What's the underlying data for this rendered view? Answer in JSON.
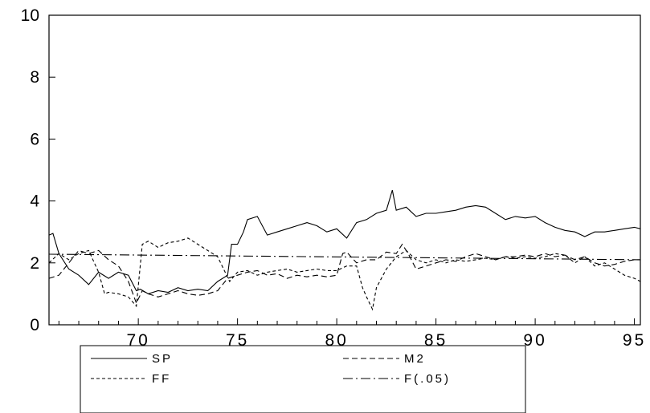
{
  "chart_data": {
    "type": "line",
    "title": "",
    "xlabel": "",
    "ylabel": "",
    "xlim": [
      1965.5,
      1995.3
    ],
    "ylim": [
      0,
      10
    ],
    "x_ticks": [
      "70",
      "75",
      "80",
      "85",
      "90",
      "95"
    ],
    "x_tick_values": [
      1970,
      1975,
      1980,
      1985,
      1990,
      1995
    ],
    "y_ticks": [
      "0",
      "2",
      "4",
      "6",
      "8",
      "10"
    ],
    "y_tick_values": [
      0,
      2,
      4,
      6,
      8,
      10
    ],
    "grid": false,
    "legend": "bottom",
    "series": [
      {
        "name": "SP",
        "dash": "solid",
        "x": [
          1965.5,
          1965.7,
          1966.0,
          1966.5,
          1967.0,
          1967.5,
          1968.0,
          1968.5,
          1969.0,
          1969.5,
          1969.9,
          1970.1,
          1970.5,
          1971.0,
          1971.5,
          1972.0,
          1972.5,
          1973.0,
          1973.5,
          1974.0,
          1974.5,
          1974.7,
          1975.0,
          1975.3,
          1975.5,
          1976.0,
          1976.5,
          1977.0,
          1977.5,
          1978.0,
          1978.5,
          1979.0,
          1979.5,
          1980.0,
          1980.5,
          1981.0,
          1981.5,
          1982.0,
          1982.5,
          1982.8,
          1983.0,
          1983.5,
          1984.0,
          1984.5,
          1985.0,
          1985.5,
          1986.0,
          1986.5,
          1987.0,
          1987.5,
          1988.0,
          1988.5,
          1989.0,
          1989.5,
          1990.0,
          1990.5,
          1991.0,
          1991.5,
          1992.0,
          1992.5,
          1993.0,
          1993.5,
          1994.0,
          1994.5,
          1995.0,
          1995.3
        ],
        "values": [
          2.9,
          2.95,
          2.3,
          1.8,
          1.6,
          1.3,
          1.7,
          1.5,
          1.7,
          1.6,
          1.1,
          1.15,
          1.0,
          1.1,
          1.05,
          1.2,
          1.1,
          1.15,
          1.1,
          1.4,
          1.6,
          2.6,
          2.6,
          3.0,
          3.4,
          3.5,
          2.9,
          3.0,
          3.1,
          3.2,
          3.3,
          3.2,
          3.0,
          3.1,
          2.8,
          3.3,
          3.4,
          3.6,
          3.7,
          4.35,
          3.7,
          3.8,
          3.5,
          3.6,
          3.6,
          3.65,
          3.7,
          3.8,
          3.85,
          3.8,
          3.6,
          3.4,
          3.5,
          3.45,
          3.5,
          3.3,
          3.15,
          3.05,
          3.0,
          2.85,
          3.0,
          3.0,
          3.05,
          3.1,
          3.15,
          3.1
        ]
      },
      {
        "name": "M2",
        "dash": "long-dash",
        "x": [
          1965.5,
          1966.0,
          1966.5,
          1967.0,
          1967.5,
          1968.0,
          1968.5,
          1969.0,
          1969.5,
          1969.9,
          1970.2,
          1970.5,
          1971.0,
          1971.5,
          1972.0,
          1972.5,
          1973.0,
          1973.5,
          1974.0,
          1974.5,
          1975.0,
          1975.5,
          1976.0,
          1976.5,
          1977.0,
          1977.5,
          1978.0,
          1978.5,
          1979.0,
          1979.5,
          1980.0,
          1980.3,
          1980.5,
          1981.0,
          1981.5,
          1982.0,
          1982.5,
          1983.0,
          1983.3,
          1983.6,
          1984.0,
          1984.5,
          1985.0,
          1985.5,
          1986.0,
          1986.5,
          1987.0,
          1987.5,
          1988.0,
          1988.5,
          1989.0,
          1989.5,
          1990.0,
          1990.5,
          1991.0,
          1991.5,
          1992.0,
          1992.5,
          1993.0,
          1993.5,
          1994.0,
          1994.5,
          1995.0,
          1995.3
        ],
        "values": [
          1.5,
          1.6,
          2.0,
          2.4,
          2.3,
          2.4,
          2.1,
          1.9,
          1.4,
          0.7,
          1.1,
          1.0,
          0.9,
          1.0,
          1.1,
          1.0,
          0.95,
          1.0,
          1.1,
          1.5,
          1.6,
          1.7,
          1.75,
          1.6,
          1.65,
          1.5,
          1.6,
          1.55,
          1.6,
          1.55,
          1.6,
          2.3,
          2.35,
          2.0,
          2.1,
          2.1,
          2.35,
          2.3,
          2.6,
          2.3,
          1.8,
          1.9,
          2.0,
          2.1,
          2.05,
          2.2,
          2.3,
          2.2,
          2.1,
          2.2,
          2.2,
          2.25,
          2.2,
          2.3,
          2.2,
          2.25,
          2.1,
          2.2,
          2.0,
          1.9,
          1.95,
          2.05,
          2.1,
          2.1
        ]
      },
      {
        "name": "FF",
        "dash": "short-dash",
        "x": [
          1965.5,
          1966.0,
          1966.5,
          1967.0,
          1967.5,
          1968.0,
          1968.3,
          1968.5,
          1969.0,
          1969.5,
          1969.9,
          1970.2,
          1970.5,
          1971.0,
          1971.5,
          1972.0,
          1972.5,
          1973.0,
          1973.5,
          1974.0,
          1974.3,
          1974.6,
          1975.0,
          1975.5,
          1976.0,
          1976.5,
          1977.0,
          1977.5,
          1978.0,
          1978.5,
          1979.0,
          1979.5,
          1980.0,
          1980.5,
          1981.0,
          1981.3,
          1981.5,
          1981.8,
          1982.0,
          1982.5,
          1983.0,
          1983.5,
          1984.0,
          1984.5,
          1985.0,
          1985.5,
          1986.0,
          1986.5,
          1987.0,
          1987.5,
          1988.0,
          1988.5,
          1989.0,
          1989.5,
          1990.0,
          1990.5,
          1991.0,
          1991.5,
          1992.0,
          1992.5,
          1993.0,
          1993.5,
          1994.0,
          1994.5,
          1995.0,
          1995.3
        ],
        "values": [
          2.0,
          2.3,
          2.1,
          2.3,
          2.4,
          1.7,
          1.0,
          1.05,
          1.0,
          0.9,
          0.6,
          2.6,
          2.7,
          2.5,
          2.65,
          2.7,
          2.8,
          2.6,
          2.4,
          2.2,
          1.8,
          1.4,
          1.7,
          1.75,
          1.6,
          1.7,
          1.75,
          1.8,
          1.7,
          1.75,
          1.8,
          1.75,
          1.75,
          1.9,
          1.9,
          1.2,
          0.9,
          0.5,
          1.2,
          1.8,
          2.2,
          2.4,
          2.1,
          2.0,
          2.1,
          2.0,
          2.1,
          2.05,
          2.1,
          2.15,
          2.1,
          2.2,
          2.15,
          2.2,
          2.15,
          2.2,
          2.3,
          2.25,
          2.0,
          2.2,
          1.9,
          2.0,
          1.8,
          1.6,
          1.5,
          1.4
        ]
      },
      {
        "name": "F(.05)",
        "dash": "dash-dot",
        "x": [
          1965.5,
          1995.3
        ],
        "values": [
          2.28,
          2.1
        ]
      }
    ]
  }
}
